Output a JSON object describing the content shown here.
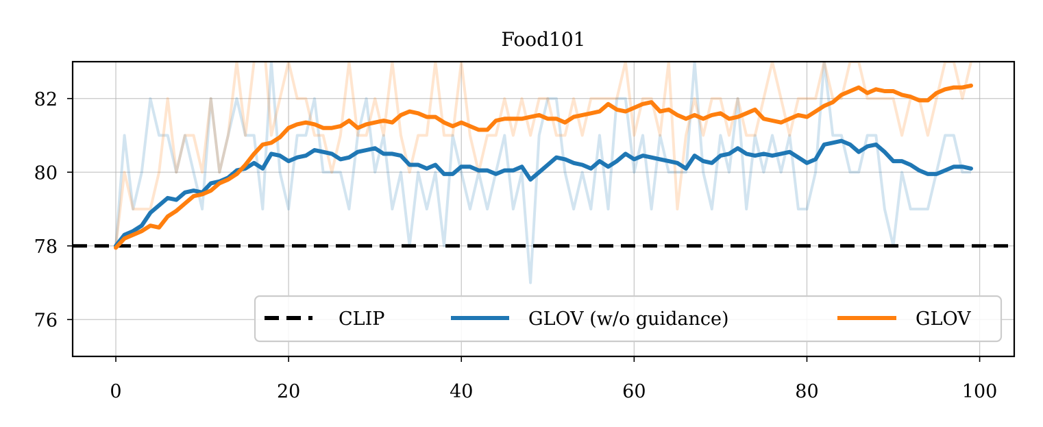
{
  "chart_data": {
    "type": "line",
    "title": "Food101",
    "xlabel": "",
    "ylabel": "",
    "xlim": [
      -5,
      104
    ],
    "ylim": [
      75,
      83
    ],
    "xticks": [
      0,
      20,
      40,
      60,
      80,
      100
    ],
    "yticks": [
      76,
      78,
      80,
      82
    ],
    "grid": true,
    "legend_position": "lower-right",
    "baseline": {
      "name": "CLIP",
      "value": 78,
      "color": "#000000",
      "style": "dashed"
    },
    "series": [
      {
        "name": "GLOV (w/o guidance)",
        "color": "#1f77b4",
        "x": [
          0,
          1,
          2,
          3,
          4,
          5,
          6,
          7,
          8,
          9,
          10,
          11,
          12,
          13,
          14,
          15,
          16,
          17,
          18,
          19,
          20,
          21,
          22,
          23,
          24,
          25,
          26,
          27,
          28,
          29,
          30,
          31,
          32,
          33,
          34,
          35,
          36,
          37,
          38,
          39,
          40,
          41,
          42,
          43,
          44,
          45,
          46,
          47,
          48,
          49,
          50,
          51,
          52,
          53,
          54,
          55,
          56,
          57,
          58,
          59,
          60,
          61,
          62,
          63,
          64,
          65,
          66,
          67,
          68,
          69,
          70,
          71,
          72,
          73,
          74,
          75,
          76,
          77,
          78,
          79,
          80,
          81,
          82,
          83,
          84,
          85,
          86,
          87,
          88,
          89,
          90,
          91,
          92,
          93,
          94,
          95,
          96,
          97,
          98,
          99
        ],
        "values": [
          78.0,
          78.3,
          78.4,
          78.55,
          78.9,
          79.1,
          79.3,
          79.25,
          79.45,
          79.5,
          79.45,
          79.7,
          79.75,
          79.85,
          80.05,
          80.1,
          80.25,
          80.1,
          80.5,
          80.45,
          80.3,
          80.4,
          80.45,
          80.6,
          80.55,
          80.5,
          80.35,
          80.4,
          80.55,
          80.6,
          80.65,
          80.5,
          80.5,
          80.45,
          80.2,
          80.2,
          80.1,
          80.2,
          79.95,
          79.95,
          80.15,
          80.15,
          80.05,
          80.05,
          79.95,
          80.05,
          80.05,
          80.15,
          79.8,
          80.0,
          80.2,
          80.4,
          80.35,
          80.25,
          80.2,
          80.1,
          80.3,
          80.15,
          80.3,
          80.5,
          80.35,
          80.45,
          80.4,
          80.35,
          80.3,
          80.25,
          80.1,
          80.45,
          80.3,
          80.25,
          80.45,
          80.5,
          80.65,
          80.5,
          80.45,
          80.5,
          80.45,
          80.5,
          80.55,
          80.4,
          80.25,
          80.35,
          80.75,
          80.8,
          80.85,
          80.75,
          80.55,
          80.7,
          80.75,
          80.55,
          80.3,
          80.3,
          80.2,
          80.05,
          79.95,
          79.95,
          80.05,
          80.15,
          80.15,
          80.1
        ],
        "raw_values": [
          78,
          81,
          79,
          80,
          82,
          81,
          81,
          80,
          81,
          80,
          79,
          82,
          80,
          81,
          82,
          81,
          81,
          79,
          83,
          80,
          79,
          81,
          81,
          82,
          80,
          80,
          80,
          79,
          81,
          82,
          80,
          81,
          79,
          80,
          78,
          80,
          79,
          80,
          78,
          81,
          80,
          79,
          80,
          79,
          80,
          81,
          79,
          80,
          77,
          81,
          82,
          82,
          80,
          79,
          80,
          79,
          81,
          79,
          82,
          82,
          80,
          81,
          79,
          81,
          80,
          80,
          80,
          83,
          80,
          79,
          81,
          80,
          82,
          79,
          81,
          80,
          81,
          80,
          81,
          79,
          79,
          80,
          83,
          81,
          81,
          80,
          80,
          81,
          81,
          79,
          78,
          80,
          79,
          79,
          79,
          80,
          81,
          81,
          80,
          80
        ]
      },
      {
        "name": "GLOV",
        "color": "#ff7f0e",
        "x": [
          0,
          1,
          2,
          3,
          4,
          5,
          6,
          7,
          8,
          9,
          10,
          11,
          12,
          13,
          14,
          15,
          16,
          17,
          18,
          19,
          20,
          21,
          22,
          23,
          24,
          25,
          26,
          27,
          28,
          29,
          30,
          31,
          32,
          33,
          34,
          35,
          36,
          37,
          38,
          39,
          40,
          41,
          42,
          43,
          44,
          45,
          46,
          47,
          48,
          49,
          50,
          51,
          52,
          53,
          54,
          55,
          56,
          57,
          58,
          59,
          60,
          61,
          62,
          63,
          64,
          65,
          66,
          67,
          68,
          69,
          70,
          71,
          72,
          73,
          74,
          75,
          76,
          77,
          78,
          79,
          80,
          81,
          82,
          83,
          84,
          85,
          86,
          87,
          88,
          89,
          90,
          91,
          92,
          93,
          94,
          95,
          96,
          97,
          98,
          99
        ],
        "values": [
          77.95,
          78.2,
          78.3,
          78.4,
          78.55,
          78.5,
          78.8,
          78.95,
          79.15,
          79.35,
          79.4,
          79.5,
          79.7,
          79.8,
          79.95,
          80.2,
          80.5,
          80.75,
          80.8,
          80.95,
          81.2,
          81.3,
          81.35,
          81.3,
          81.2,
          81.2,
          81.25,
          81.4,
          81.2,
          81.3,
          81.35,
          81.4,
          81.35,
          81.55,
          81.65,
          81.6,
          81.5,
          81.5,
          81.35,
          81.25,
          81.35,
          81.25,
          81.15,
          81.15,
          81.4,
          81.45,
          81.45,
          81.45,
          81.5,
          81.55,
          81.45,
          81.45,
          81.35,
          81.5,
          81.55,
          81.6,
          81.65,
          81.85,
          81.7,
          81.65,
          81.75,
          81.85,
          81.9,
          81.65,
          81.7,
          81.55,
          81.45,
          81.55,
          81.45,
          81.55,
          81.6,
          81.45,
          81.5,
          81.6,
          81.7,
          81.45,
          81.4,
          81.35,
          81.45,
          81.55,
          81.5,
          81.65,
          81.8,
          81.9,
          82.1,
          82.2,
          82.3,
          82.15,
          82.25,
          82.2,
          82.2,
          82.1,
          82.05,
          81.95,
          81.95,
          82.15,
          82.25,
          82.3,
          82.3,
          82.35
        ],
        "raw_values": [
          78,
          80,
          79,
          79,
          79,
          80,
          82,
          80,
          81,
          81,
          80,
          82,
          80,
          81,
          83,
          81,
          83,
          84,
          81,
          82,
          83,
          82,
          82,
          81,
          81,
          80,
          81,
          83,
          81,
          81,
          82,
          81,
          83,
          81,
          80,
          81,
          81,
          83,
          81,
          81,
          83,
          81,
          80,
          81,
          81,
          82,
          81,
          82,
          81,
          82,
          82,
          81,
          81,
          82,
          81,
          82,
          82,
          82,
          82,
          83,
          81,
          82,
          82,
          81,
          83,
          79,
          81,
          82,
          81,
          82,
          82,
          81,
          82,
          81,
          81,
          82,
          83,
          82,
          81,
          82,
          82,
          82,
          83,
          82,
          82,
          83,
          83,
          82,
          82,
          82,
          82,
          81,
          82,
          82,
          81,
          82,
          83,
          83,
          82,
          83
        ]
      }
    ]
  }
}
